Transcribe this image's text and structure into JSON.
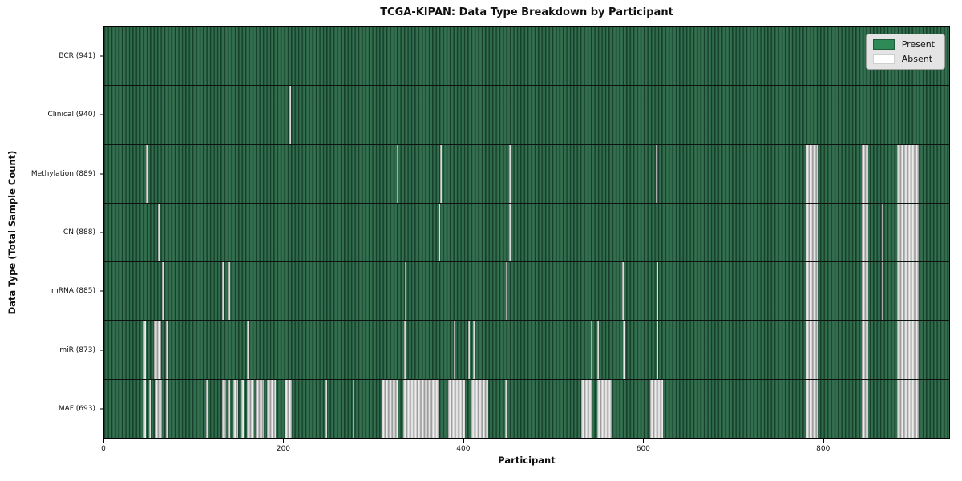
{
  "chart_data": {
    "type": "heatmap",
    "title": "TCGA-KIPAN: Data Type Breakdown by Participant",
    "xlabel": "Participant",
    "ylabel": "Data Type (Total Sample Count)",
    "x_range": [
      0,
      941
    ],
    "x_ticks": [
      0,
      200,
      400,
      600,
      800
    ],
    "grid": false,
    "legend_position": "upper right",
    "colors": {
      "present": "#2e8b57",
      "absent": "#ffffff",
      "present_edge": "#16402b",
      "legend_bg": "#e4e4e4"
    },
    "legend": [
      {
        "label": "Present",
        "color": "#2e8b57"
      },
      {
        "label": "Absent",
        "color": "#ffffff"
      }
    ],
    "rows": [
      {
        "label": "BCR (941)",
        "data_type": "BCR",
        "present_count": 941,
        "absent_ranges": []
      },
      {
        "label": "Clinical (940)",
        "data_type": "Clinical",
        "present_count": 940,
        "absent_ranges": [
          [
            206,
            208
          ]
        ]
      },
      {
        "label": "Methylation (889)",
        "data_type": "Methylation",
        "present_count": 889,
        "absent_ranges": [
          [
            46,
            48
          ],
          [
            326,
            328
          ],
          [
            374,
            376
          ],
          [
            451,
            453
          ],
          [
            614,
            616
          ],
          [
            781,
            795
          ],
          [
            844,
            851
          ],
          [
            883,
            907
          ]
        ]
      },
      {
        "label": "CN (888)",
        "data_type": "CN",
        "present_count": 888,
        "absent_ranges": [
          [
            60,
            62
          ],
          [
            372,
            374
          ],
          [
            451,
            453
          ],
          [
            781,
            795
          ],
          [
            844,
            851
          ],
          [
            866,
            868
          ],
          [
            883,
            907
          ]
        ]
      },
      {
        "label": "mRNA (885)",
        "data_type": "mRNA",
        "present_count": 885,
        "absent_ranges": [
          [
            64,
            66
          ],
          [
            131,
            133
          ],
          [
            138,
            140
          ],
          [
            335,
            337
          ],
          [
            447,
            449
          ],
          [
            577,
            579
          ],
          [
            615,
            617
          ],
          [
            781,
            795
          ],
          [
            844,
            851
          ],
          [
            866,
            868
          ],
          [
            883,
            907
          ]
        ]
      },
      {
        "label": "miR (873)",
        "data_type": "miR",
        "present_count": 873,
        "absent_ranges": [
          [
            44,
            46
          ],
          [
            55,
            63
          ],
          [
            69,
            71
          ],
          [
            159,
            161
          ],
          [
            334,
            336
          ],
          [
            389,
            391
          ],
          [
            405,
            407
          ],
          [
            411,
            413
          ],
          [
            542,
            544
          ],
          [
            549,
            551
          ],
          [
            578,
            580
          ],
          [
            615,
            617
          ],
          [
            781,
            795
          ],
          [
            844,
            851
          ],
          [
            883,
            907
          ]
        ]
      },
      {
        "label": "MAF (693)",
        "data_type": "MAF",
        "present_count": 693,
        "absent_ranges": [
          [
            44,
            46
          ],
          [
            50,
            52
          ],
          [
            56,
            64
          ],
          [
            69,
            71
          ],
          [
            113,
            115
          ],
          [
            131,
            136
          ],
          [
            138,
            140
          ],
          [
            144,
            149
          ],
          [
            153,
            155
          ],
          [
            159,
            167
          ],
          [
            169,
            178
          ],
          [
            181,
            191
          ],
          [
            201,
            209
          ],
          [
            246,
            248
          ],
          [
            277,
            279
          ],
          [
            309,
            328
          ],
          [
            333,
            373
          ],
          [
            383,
            402
          ],
          [
            409,
            428
          ],
          [
            446,
            448
          ],
          [
            531,
            543
          ],
          [
            549,
            565
          ],
          [
            608,
            622
          ],
          [
            781,
            795
          ],
          [
            844,
            851
          ],
          [
            883,
            907
          ]
        ]
      }
    ]
  }
}
